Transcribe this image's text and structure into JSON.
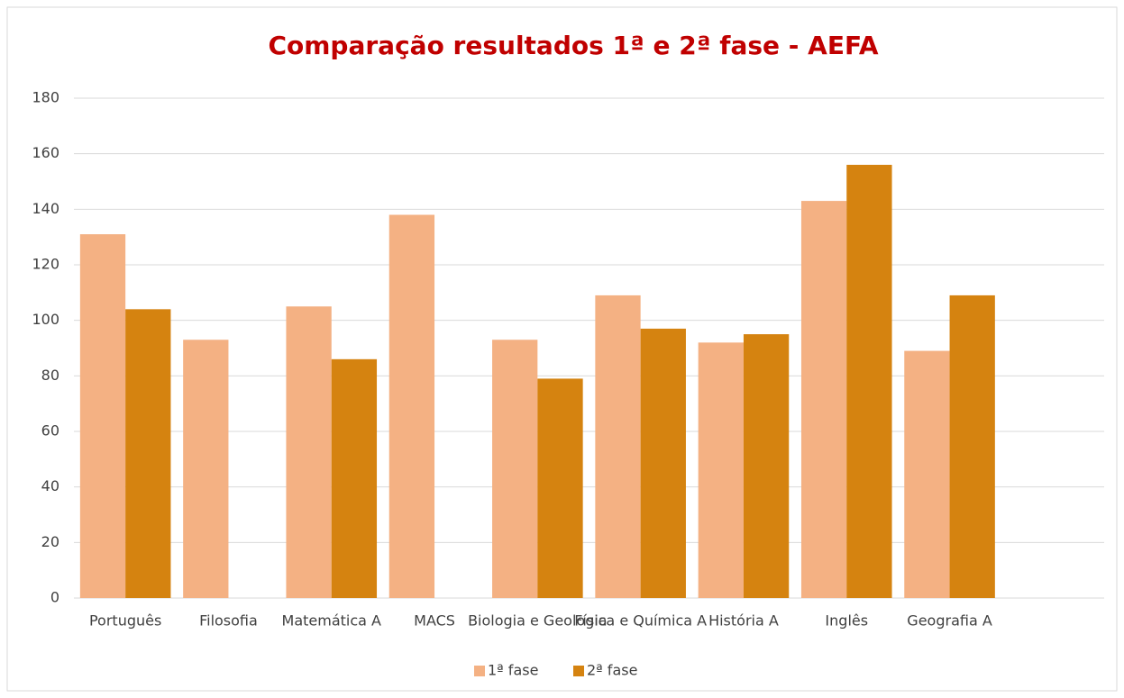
{
  "chart_data": {
    "type": "bar",
    "title": "Comparação resultados 1ª e 2ª fase - AEFA",
    "categories": [
      "Português",
      "Filosofia",
      "Matemática A",
      "MACS",
      "Biologia e Geologia",
      "Física e Química A",
      "História A",
      "Inglês",
      "Geografia A",
      null
    ],
    "series": [
      {
        "name": "1ª fase",
        "color": "#f4b183",
        "values": [
          131,
          93,
          105,
          138,
          93,
          109,
          92,
          143,
          89,
          null
        ]
      },
      {
        "name": "2ª fase",
        "color": "#d58310",
        "values": [
          104,
          null,
          86,
          null,
          79,
          97,
          95,
          156,
          109,
          null
        ]
      }
    ],
    "ylim": [
      0,
      180
    ],
    "yticks": [
      0,
      20,
      40,
      60,
      80,
      100,
      120,
      140,
      160,
      180
    ],
    "grid": true,
    "legend": "bottom"
  }
}
